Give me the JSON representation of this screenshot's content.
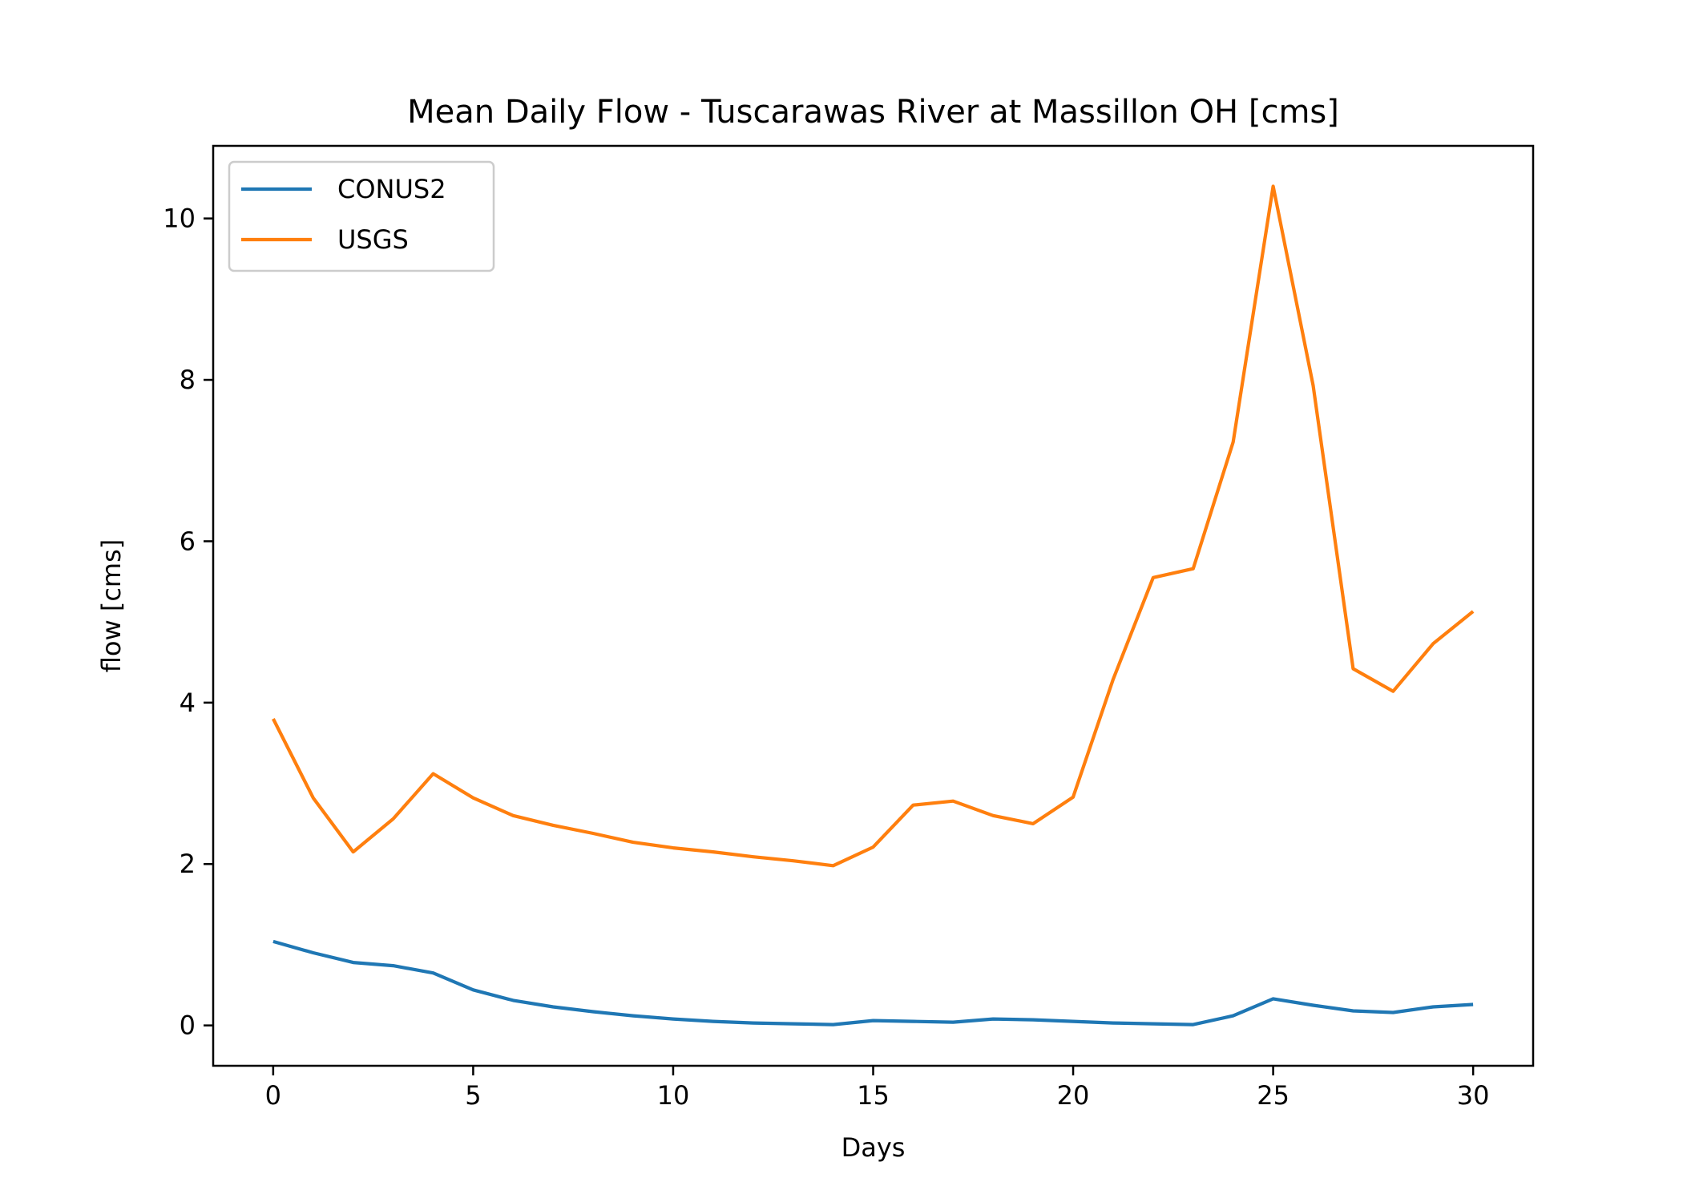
{
  "chart_data": {
    "type": "line",
    "title": "Mean Daily Flow - Tuscarawas River at Massillon OH [cms]",
    "xlabel": "Days",
    "ylabel": "flow [cms]",
    "xlim": [
      -1.5,
      31.5
    ],
    "ylim": [
      -0.5,
      10.9
    ],
    "xticks": [
      0,
      5,
      10,
      15,
      20,
      25,
      30
    ],
    "yticks": [
      0,
      2,
      4,
      6,
      8,
      10
    ],
    "grid": false,
    "legend_position": "upper-left",
    "x": [
      0,
      1,
      2,
      3,
      4,
      5,
      6,
      7,
      8,
      9,
      10,
      11,
      12,
      13,
      14,
      15,
      16,
      17,
      18,
      19,
      20,
      21,
      22,
      23,
      24,
      25,
      26,
      27,
      28,
      29,
      30
    ],
    "series": [
      {
        "name": "CONUS2",
        "color": "#1f77b4",
        "values": [
          1.04,
          0.9,
          0.78,
          0.74,
          0.65,
          0.44,
          0.31,
          0.23,
          0.17,
          0.12,
          0.08,
          0.05,
          0.03,
          0.02,
          0.01,
          0.06,
          0.05,
          0.04,
          0.08,
          0.07,
          0.05,
          0.03,
          0.02,
          0.01,
          0.12,
          0.33,
          0.25,
          0.18,
          0.16,
          0.23,
          0.26
        ]
      },
      {
        "name": "USGS",
        "color": "#ff7f0e",
        "values": [
          3.8,
          2.82,
          2.15,
          2.56,
          3.12,
          2.82,
          2.6,
          2.48,
          2.38,
          2.27,
          2.2,
          2.15,
          2.09,
          2.04,
          1.98,
          2.21,
          2.73,
          2.78,
          2.6,
          2.5,
          2.83,
          4.29,
          5.55,
          5.66,
          7.23,
          10.4,
          7.93,
          4.42,
          4.14,
          4.73,
          5.13
        ]
      }
    ]
  }
}
